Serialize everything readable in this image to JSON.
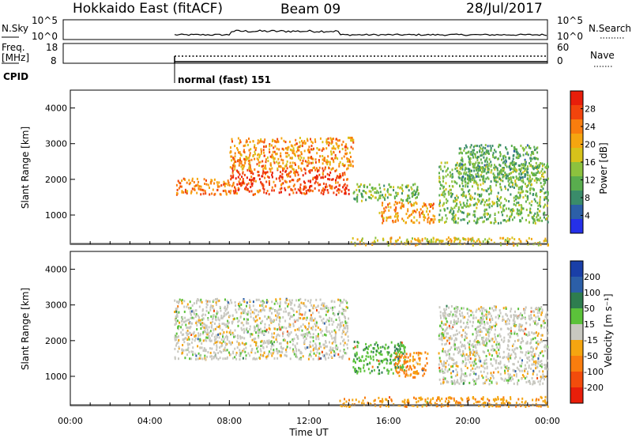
{
  "header": {
    "radar": "Hokkaido East (fitACF)",
    "beam": "Beam 09",
    "date": "28/Jul/2017"
  },
  "summary_panels": {
    "nsky_label": "N.Sky",
    "nsearch_label": "N.Search",
    "noise_ticks": [
      "10^5",
      "10^0"
    ],
    "freq_label_line1": "Freq.",
    "freq_label_line2": "[MHz]",
    "freq_ticks": [
      "18",
      "8"
    ],
    "nave_label": "Nave",
    "nave_ticks": [
      "60",
      "0"
    ],
    "cpid_label": "CPID",
    "cpid_value": "normal (fast) 151"
  },
  "chart_data": [
    {
      "type": "heatmap",
      "name": "power-panel",
      "ylabel": "Slant Range [km]",
      "xlabel": "",
      "xlim": [
        "00:00",
        "24:00"
      ],
      "ylim": [
        180,
        4500
      ],
      "yticks": [
        1000,
        2000,
        3000,
        4000
      ],
      "colorbar": {
        "label": "Power [dB]",
        "range": [
          0,
          32
        ],
        "ticks": [
          4,
          8,
          12,
          16,
          20,
          24,
          28
        ],
        "colors": [
          "#2530e8",
          "#2c5fa8",
          "#3a8c6a",
          "#59ad4e",
          "#8cc23e",
          "#d7c21a",
          "#f5a510",
          "#f97d0e",
          "#f2440c",
          "#e81e0a"
        ]
      },
      "echo_regions": [
        {
          "t0": 5.2,
          "t1": 8.0,
          "r0": 1600,
          "r1": 2050,
          "level": 24
        },
        {
          "t0": 8.0,
          "t1": 14.0,
          "r0": 1600,
          "r1": 2300,
          "level": 27
        },
        {
          "t0": 8.0,
          "t1": 14.2,
          "r0": 2300,
          "r1": 3200,
          "level": 22
        },
        {
          "t0": 14.2,
          "t1": 17.5,
          "r0": 1400,
          "r1": 1900,
          "level": 13
        },
        {
          "t0": 15.5,
          "t1": 18.3,
          "r0": 800,
          "r1": 1400,
          "level": 22
        },
        {
          "t0": 18.5,
          "t1": 24.0,
          "r0": 800,
          "r1": 2500,
          "level": 13
        },
        {
          "t0": 19.5,
          "t1": 23.5,
          "r0": 2000,
          "r1": 3000,
          "level": 11
        },
        {
          "t0": 14.0,
          "t1": 24.0,
          "r0": 180,
          "r1": 400,
          "level": 18
        }
      ]
    },
    {
      "type": "heatmap",
      "name": "velocity-panel",
      "ylabel": "Slant Range [km]",
      "xlabel": "Time UT",
      "xticks": [
        "00:00",
        "04:00",
        "08:00",
        "12:00",
        "16:00",
        "20:00",
        "00:00"
      ],
      "ylim": [
        180,
        4500
      ],
      "yticks": [
        1000,
        2000,
        3000,
        4000
      ],
      "colorbar": {
        "label": "Velocity [m s⁻¹]",
        "ticks": [
          "200",
          "100",
          "50",
          "15",
          "-15",
          "-50",
          "-100",
          "-200"
        ],
        "colors": [
          "#1a3fa8",
          "#2c5fa8",
          "#2e7d4f",
          "#5bc23a",
          "#c8c8c0",
          "#f5a510",
          "#f97d0e",
          "#f24c0c",
          "#e81e0a"
        ]
      },
      "echo_regions": [
        {
          "t0": 5.2,
          "t1": 14.0,
          "r0": 1500,
          "r1": 3200,
          "velocity": 0
        },
        {
          "t0": 14.2,
          "t1": 16.8,
          "r0": 1100,
          "r1": 2000,
          "velocity": 40
        },
        {
          "t0": 16.3,
          "t1": 18.0,
          "r0": 1000,
          "r1": 1700,
          "velocity": -60
        },
        {
          "t0": 18.5,
          "t1": 24.0,
          "r0": 800,
          "r1": 3000,
          "velocity": 0
        },
        {
          "t0": 13.5,
          "t1": 24.0,
          "r0": 180,
          "r1": 450,
          "velocity": -40
        }
      ]
    }
  ]
}
